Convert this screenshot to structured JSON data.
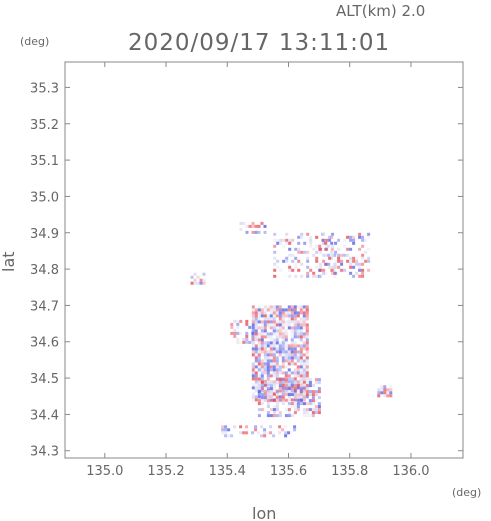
{
  "header": {
    "alt_label": "ALT(km)  2.0",
    "timestamp": "2020/09/17 13:11:01"
  },
  "chart_data": {
    "type": "heatmap",
    "title": "2020/09/17 13:11:01",
    "xlabel": "lon",
    "ylabel": "lat",
    "x_unit": "(deg)",
    "y_unit": "(deg)",
    "xlim": [
      134.87,
      136.17
    ],
    "ylim": [
      34.28,
      35.37
    ],
    "xticks": [
      135.0,
      135.2,
      135.4,
      135.6,
      135.8,
      136.0
    ],
    "xtick_labels": [
      "135.0",
      "135.2",
      "135.4",
      "135.6",
      "135.8",
      "136.0"
    ],
    "yticks": [
      34.3,
      34.4,
      34.5,
      34.6,
      34.7,
      34.8,
      34.9,
      35.0,
      35.1,
      35.2,
      35.3
    ],
    "ytick_labels": [
      "34.3",
      "34.4",
      "34.5",
      "34.6",
      "34.7",
      "34.8",
      "34.9",
      "35.0",
      "35.1",
      "35.2",
      "35.3"
    ],
    "grid": false,
    "colors": {
      "positive": "#e8505a",
      "negative": "#5a64e6",
      "neutral": "#d8d8ee",
      "axis": "#888888"
    },
    "regions": [
      {
        "lon": [
          135.48,
          135.66
        ],
        "lat": [
          34.44,
          34.7
        ],
        "density": 0.85
      },
      {
        "lon": [
          135.5,
          135.7
        ],
        "lat": [
          34.4,
          34.5
        ],
        "density": 0.6
      },
      {
        "lon": [
          135.55,
          135.75
        ],
        "lat": [
          34.78,
          34.9
        ],
        "density": 0.35
      },
      {
        "lon": [
          135.7,
          135.86
        ],
        "lat": [
          34.78,
          34.9
        ],
        "density": 0.35
      },
      {
        "lon": [
          135.38,
          135.62
        ],
        "lat": [
          34.34,
          34.37
        ],
        "density": 0.4
      },
      {
        "lon": [
          135.44,
          135.52
        ],
        "lat": [
          34.9,
          34.93
        ],
        "density": 0.4
      },
      {
        "lon": [
          135.28,
          135.32
        ],
        "lat": [
          34.76,
          34.79
        ],
        "density": 0.6
      },
      {
        "lon": [
          135.89,
          135.93
        ],
        "lat": [
          34.45,
          34.48
        ],
        "density": 0.9
      },
      {
        "lon": [
          135.41,
          135.48
        ],
        "lat": [
          34.6,
          34.66
        ],
        "density": 0.5
      }
    ]
  }
}
